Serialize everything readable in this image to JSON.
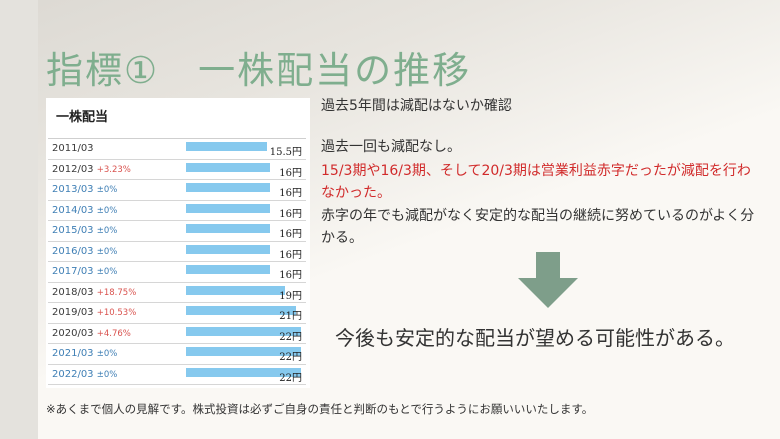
{
  "title": "指標①　一株配当の推移",
  "table": {
    "heading": "一株配当",
    "rows": [
      {
        "year": "2011/03",
        "change": "",
        "change_type": "none",
        "value": "15.5円",
        "amount": 15.5
      },
      {
        "year": "2012/03",
        "change": "+3.23%",
        "change_type": "up",
        "value": "16円",
        "amount": 16
      },
      {
        "year": "2013/03",
        "change": "±0%",
        "change_type": "flat",
        "value": "16円",
        "amount": 16
      },
      {
        "year": "2014/03",
        "change": "±0%",
        "change_type": "flat",
        "value": "16円",
        "amount": 16
      },
      {
        "year": "2015/03",
        "change": "±0%",
        "change_type": "flat",
        "value": "16円",
        "amount": 16
      },
      {
        "year": "2016/03",
        "change": "±0%",
        "change_type": "flat",
        "value": "16円",
        "amount": 16
      },
      {
        "year": "2017/03",
        "change": "±0%",
        "change_type": "flat",
        "value": "16円",
        "amount": 16
      },
      {
        "year": "2018/03",
        "change": "+18.75%",
        "change_type": "up",
        "value": "19円",
        "amount": 19
      },
      {
        "year": "2019/03",
        "change": "+10.53%",
        "change_type": "up",
        "value": "21円",
        "amount": 21
      },
      {
        "year": "2020/03",
        "change": "+4.76%",
        "change_type": "up",
        "value": "22円",
        "amount": 22
      },
      {
        "year": "2021/03",
        "change": "±0%",
        "change_type": "flat",
        "value": "22円",
        "amount": 22
      },
      {
        "year": "2022/03",
        "change": "±0%",
        "change_type": "flat",
        "value": "22円",
        "amount": 22
      }
    ],
    "max_amount": 22
  },
  "text": {
    "line1": "過去5年間は減配はないか確認",
    "line2": "過去一回も減配なし。",
    "line3": "15/3期や16/3期、そして20/3期は営業利益赤字だったが減配を行わなかった。",
    "line4": "赤字の年でも減配がなく安定的な配当の継続に努めているのがよく分かる。",
    "conclusion": "今後も安定的な配当が望める可能性がある。",
    "footnote": "※あくまで個人の見解です。株式投資は必ずご自身の責任と判断のもとで行うようにお願いいいたします。"
  },
  "colors": {
    "title": "#7fae8e",
    "arrow": "#7e9e8a",
    "bar": "#86c9ee",
    "highlight": "#d12b2b"
  }
}
